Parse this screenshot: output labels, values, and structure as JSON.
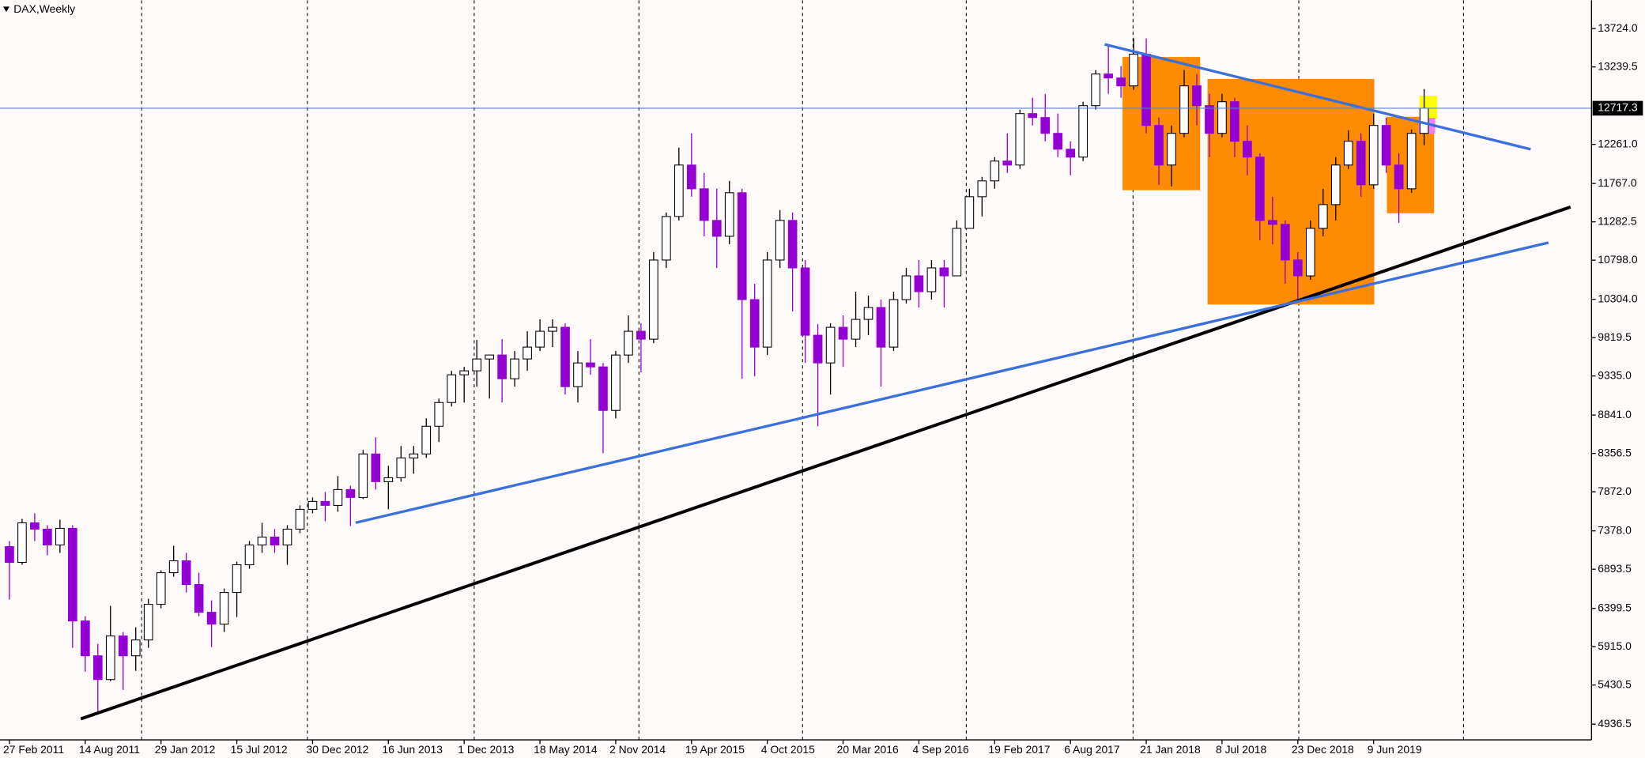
{
  "chart_data": {
    "type": "candlestick",
    "title": "DAX,Weekly",
    "categories": [
      "27 Feb 2011",
      null,
      null,
      null,
      null,
      null,
      "14 Aug 2011",
      null,
      null,
      null,
      null,
      null,
      "29 Jan 2012",
      null,
      null,
      null,
      null,
      null,
      "15 Jul 2012",
      null,
      null,
      null,
      null,
      null,
      "30 Dec 2012",
      null,
      null,
      null,
      null,
      null,
      "16 Jun 2013",
      null,
      null,
      null,
      null,
      null,
      "1 Dec 2013",
      null,
      null,
      null,
      null,
      null,
      "18 May 2014",
      null,
      null,
      null,
      null,
      null,
      "2 Nov 2014",
      null,
      null,
      null,
      null,
      null,
      "19 Apr 2015",
      null,
      null,
      null,
      null,
      null,
      "4 Oct 2015",
      null,
      null,
      null,
      null,
      null,
      "20 Mar 2016",
      null,
      null,
      null,
      null,
      null,
      "4 Sep 2016",
      null,
      null,
      null,
      null,
      null,
      "19 Feb 2017",
      null,
      null,
      null,
      null,
      null,
      "6 Aug 2017",
      null,
      null,
      null,
      null,
      null,
      "21 Jan 2018",
      null,
      null,
      null,
      null,
      null,
      "8 Jul 2018",
      null,
      null,
      null,
      null,
      null,
      "23 Dec 2018",
      null,
      null,
      null,
      null,
      null,
      "9 Jun 2019",
      null,
      null,
      null,
      null
    ],
    "open": [
      7180,
      6980,
      7480,
      7400,
      7200,
      7410,
      6240,
      5800,
      5500,
      6050,
      5800,
      6000,
      6450,
      6850,
      7000,
      6700,
      6350,
      6200,
      6600,
      6950,
      7200,
      7300,
      7200,
      7400,
      7650,
      7750,
      7700,
      7900,
      7800,
      8350,
      8000,
      8050,
      8300,
      8350,
      8700,
      9000,
      9350,
      9400,
      9550,
      9600,
      9300,
      9550,
      9700,
      9900,
      9950,
      9200,
      9500,
      9450,
      8900,
      9600,
      9900,
      9800,
      10800,
      11350,
      12000,
      11700,
      11300,
      11100,
      11650,
      10300,
      9700,
      10800,
      11300,
      10700,
      9850,
      9500,
      9950,
      9800,
      10050,
      10200,
      9700,
      10300,
      10600,
      10400,
      10700,
      10600,
      11200,
      11600,
      11800,
      12050,
      12000,
      12650,
      12600,
      12400,
      12200,
      12100,
      12750,
      13150,
      13100,
      13000,
      13400,
      12500,
      12000,
      12400,
      13000,
      12750,
      12400,
      12800,
      12300,
      12100,
      11300,
      11250,
      10800,
      10600,
      11200,
      11500,
      12000,
      12300,
      11750,
      12500,
      12000,
      11700,
      12400
    ],
    "high": [
      7250,
      7530,
      7600,
      7450,
      7520,
      7450,
      6300,
      5950,
      6430,
      6100,
      6160,
      6520,
      6880,
      7190,
      7100,
      6850,
      6500,
      6650,
      6990,
      7250,
      7480,
      7400,
      7450,
      7700,
      7800,
      7870,
      8070,
      7950,
      8400,
      8560,
      8200,
      8450,
      8450,
      8800,
      9050,
      9400,
      9450,
      9790,
      9600,
      9800,
      9650,
      9900,
      10050,
      10050,
      10000,
      9650,
      9800,
      9500,
      9650,
      10100,
      10000,
      10900,
      11400,
      12220,
      12400,
      11900,
      11700,
      11800,
      11700,
      10500,
      10900,
      11430,
      11400,
      10800,
      9990,
      10000,
      10100,
      10400,
      10350,
      10300,
      10400,
      10700,
      10800,
      10800,
      10800,
      11300,
      11700,
      11850,
      12100,
      12400,
      12700,
      12850,
      12900,
      12650,
      12300,
      12800,
      13200,
      13520,
      13250,
      13600,
      13600,
      12600,
      12500,
      13200,
      13150,
      12900,
      12900,
      12850,
      12500,
      12150,
      11600,
      11300,
      10900,
      11300,
      11700,
      12100,
      12440,
      12400,
      12650,
      12600,
      12150,
      12450,
      12960
    ],
    "low": [
      6510,
      6950,
      7250,
      7070,
      7100,
      5900,
      5600,
      5060,
      5480,
      5370,
      5610,
      5900,
      6400,
      6800,
      6600,
      6300,
      5910,
      6100,
      6290,
      6900,
      7100,
      7100,
      6950,
      7350,
      7600,
      7500,
      7620,
      7440,
      7780,
      7900,
      7650,
      8000,
      8100,
      8300,
      8500,
      8950,
      9000,
      9200,
      9050,
      9000,
      9200,
      9400,
      9650,
      9700,
      9100,
      9000,
      9350,
      8360,
      8800,
      9500,
      9380,
      9750,
      10700,
      11300,
      11600,
      11100,
      10700,
      11000,
      9300,
      9330,
      9600,
      10700,
      10150,
      9500,
      8700,
      9100,
      9450,
      9700,
      9850,
      9200,
      9650,
      10250,
      10200,
      10300,
      10200,
      10600,
      11200,
      11350,
      11700,
      11900,
      11950,
      12500,
      12300,
      12100,
      11870,
      12050,
      12700,
      12900,
      12850,
      12950,
      12400,
      11750,
      11730,
      12350,
      12500,
      12100,
      12350,
      12100,
      11870,
      11050,
      11000,
      10500,
      10280,
      10550,
      11100,
      11300,
      11950,
      11600,
      11700,
      11900,
      11270,
      11650,
      12250
    ],
    "close": [
      6980,
      7480,
      7400,
      7200,
      7410,
      6240,
      5800,
      5500,
      6050,
      5800,
      6000,
      6450,
      6850,
      7000,
      6700,
      6350,
      6200,
      6600,
      6950,
      7200,
      7300,
      7200,
      7400,
      7650,
      7750,
      7700,
      7900,
      7800,
      8350,
      8000,
      8050,
      8300,
      8350,
      8700,
      9000,
      9350,
      9400,
      9550,
      9600,
      9300,
      9550,
      9700,
      9900,
      9950,
      9200,
      9500,
      9450,
      8900,
      9600,
      9900,
      9800,
      10800,
      11350,
      12000,
      11700,
      11300,
      11100,
      11650,
      10300,
      9700,
      10800,
      11300,
      10700,
      9850,
      9500,
      9950,
      9800,
      10050,
      10200,
      9700,
      10300,
      10600,
      10400,
      10700,
      10600,
      11200,
      11600,
      11800,
      12050,
      12000,
      12650,
      12600,
      12400,
      12200,
      12100,
      12750,
      13150,
      13100,
      13000,
      13400,
      12500,
      12000,
      12400,
      13000,
      12750,
      12400,
      12800,
      12300,
      12100,
      11300,
      11250,
      10800,
      10600,
      11200,
      11500,
      12000,
      12300,
      11750,
      12500,
      12000,
      11700,
      12400,
      12717.3
    ],
    "bull_color": "#ffffff",
    "bear_color": "#9400d3",
    "edge_color": "#000000",
    "last_price": 12717.3,
    "last_price_color": "#5b7fc7",
    "ylim": [
      4738,
      14081
    ],
    "yticks": [
      {
        "value": 4936.5,
        "label": "4936.5"
      },
      {
        "value": 5430.5,
        "label": "5430.5"
      },
      {
        "value": 5915.0,
        "label": "5915.0"
      },
      {
        "value": 6399.5,
        "label": "6399.5"
      },
      {
        "value": 6893.5,
        "label": "6893.5"
      },
      {
        "value": 7378.0,
        "label": "7378.0"
      },
      {
        "value": 7872.0,
        "label": "7872.0"
      },
      {
        "value": 8356.5,
        "label": "8356.5"
      },
      {
        "value": 8841.0,
        "label": "8841.0"
      },
      {
        "value": 9335.0,
        "label": "9335.0"
      },
      {
        "value": 9819.5,
        "label": "9819.5"
      },
      {
        "value": 10304.0,
        "label": "10304.0"
      },
      {
        "value": 10798.0,
        "label": "10798.0"
      },
      {
        "value": 11282.5,
        "label": "11282.5"
      },
      {
        "value": 11767.0,
        "label": "11767.0"
      },
      {
        "value": 12261.0,
        "label": "12261.0"
      },
      {
        "value": 13239.5,
        "label": "13239.5"
      },
      {
        "value": 13724.0,
        "label": "13724.0"
      }
    ]
  }
}
